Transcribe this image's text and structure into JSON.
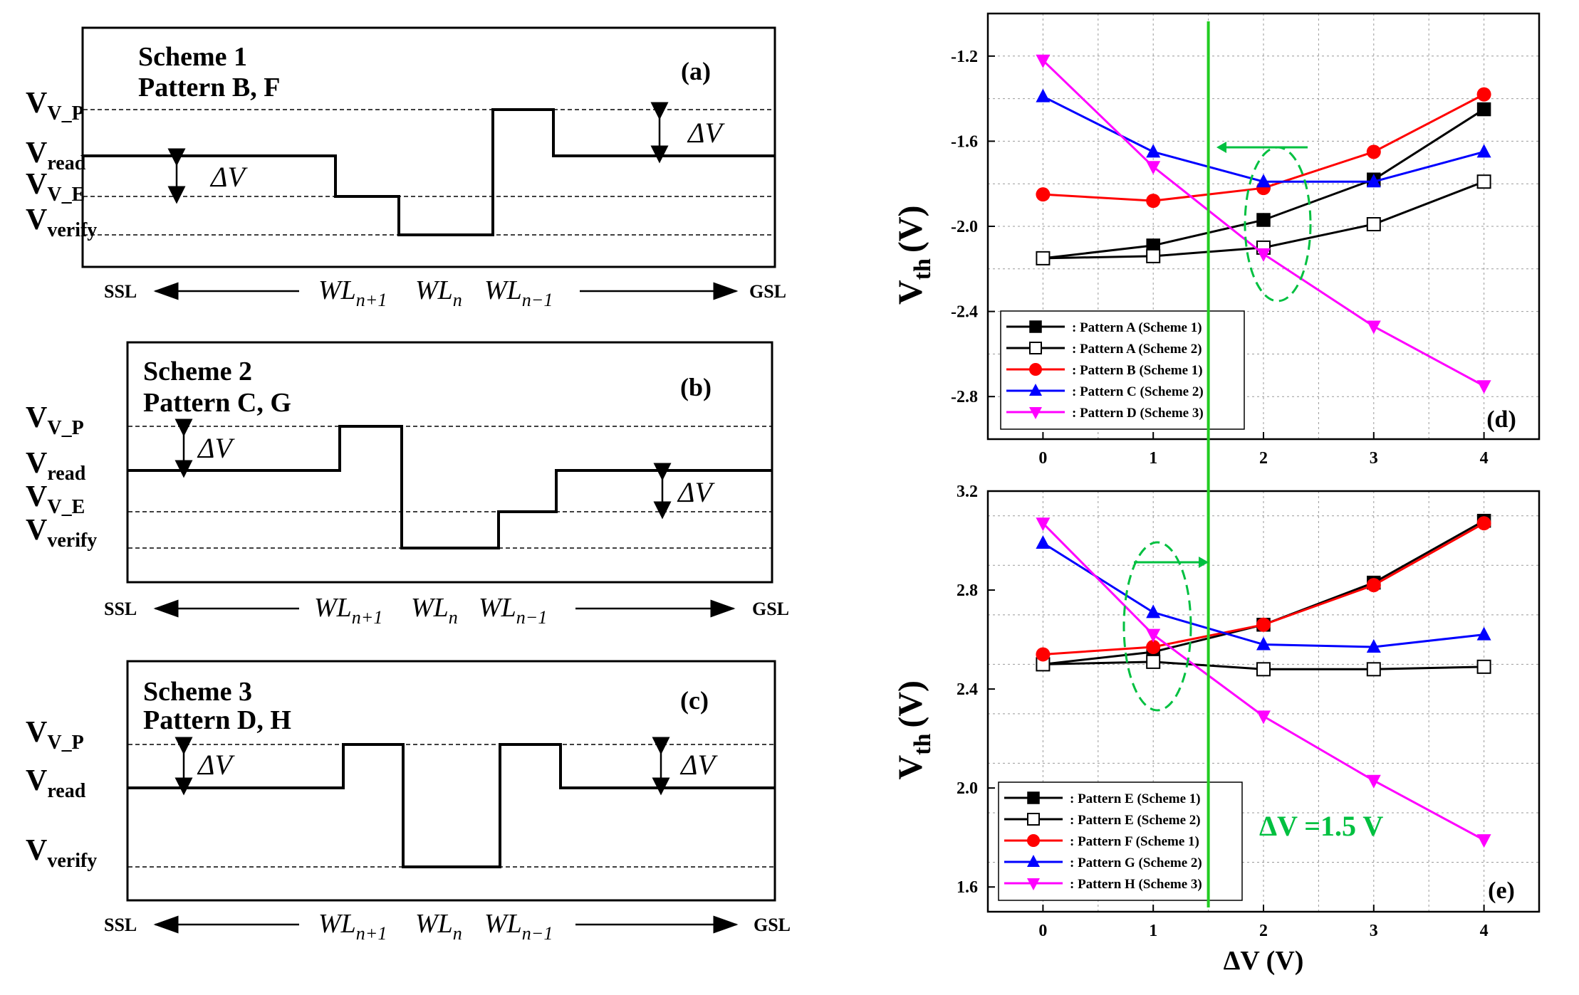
{
  "schemes": [
    {
      "panel": "(a)",
      "title": "Scheme 1",
      "pattern": "Pattern B, F",
      "levels": [
        "V_P",
        "read",
        "V_E",
        "verify"
      ],
      "delta_labels": [
        "ΔV",
        "ΔV"
      ],
      "wordlines": [
        "n+1",
        "n",
        "n−1"
      ]
    },
    {
      "panel": "(b)",
      "title": "Scheme 2",
      "pattern": "Pattern C, G",
      "levels": [
        "V_P",
        "read",
        "V_E",
        "verify"
      ],
      "delta_labels": [
        "ΔV",
        "ΔV"
      ],
      "wordlines": [
        "n+1",
        "n",
        "n−1"
      ]
    },
    {
      "panel": "(c)",
      "title": "Scheme 3",
      "pattern": "Pattern D, H",
      "levels": [
        "V_P",
        "read",
        "verify"
      ],
      "delta_labels": [
        "ΔV",
        "ΔV"
      ],
      "wordlines": [
        "n+1",
        "n",
        "n−1"
      ]
    }
  ],
  "axis_common": {
    "ssl": "SSL",
    "gsl": "GSL",
    "v_symbol": "V",
    "wl_symbol": "WL"
  },
  "chart_data": [
    {
      "type": "line",
      "panel": "(d)",
      "ylabel_main": "V",
      "ylabel_sub": "th",
      "ylabel_unit": "(V)",
      "x": [
        0,
        1,
        2,
        3,
        4
      ],
      "xlim": [
        -0.5,
        4.5
      ],
      "ylim": [
        -3.0,
        -1.0
      ],
      "xticks": [
        "0",
        "1",
        "2",
        "3",
        "4"
      ],
      "yticks": [
        "-1.2",
        "-1.6",
        "-2.0",
        "-2.4",
        "-2.8"
      ],
      "yticks_values": [
        -1.2,
        -1.6,
        -2.0,
        -2.4,
        -2.8
      ],
      "grid": true,
      "legend_position": "bottom-left",
      "series": [
        {
          "name": ": Pattern A (Scheme 1)",
          "color": "#000000",
          "marker": "square-filled",
          "values": [
            -2.15,
            -2.09,
            -1.97,
            -1.78,
            -1.45
          ]
        },
        {
          "name": ": Pattern A (Scheme 2)",
          "color": "#000000",
          "marker": "square-open",
          "values": [
            -2.15,
            -2.14,
            -2.1,
            -1.99,
            -1.79
          ]
        },
        {
          "name": ": Pattern B (Scheme 1)",
          "color": "#ff0000",
          "marker": "circle-filled",
          "values": [
            -1.85,
            -1.88,
            -1.82,
            -1.65,
            -1.38
          ]
        },
        {
          "name": ": Pattern C (Scheme 2)",
          "color": "#0000ff",
          "marker": "triangle-up",
          "values": [
            -1.39,
            -1.65,
            -1.79,
            -1.79,
            -1.65
          ]
        },
        {
          "name": ": Pattern D (Scheme 3)",
          "color": "#ff00ff",
          "marker": "triangle-down",
          "values": [
            -1.22,
            -1.72,
            -2.13,
            -2.47,
            -2.75
          ]
        }
      ]
    },
    {
      "type": "line",
      "panel": "(e)",
      "ylabel_main": "V",
      "ylabel_sub": "th",
      "ylabel_unit": "(V)",
      "xlabel": "ΔV (V)",
      "x": [
        0,
        1,
        2,
        3,
        4
      ],
      "xlim": [
        -0.5,
        4.5
      ],
      "ylim": [
        1.5,
        3.2
      ],
      "xticks": [
        "0",
        "1",
        "2",
        "3",
        "4"
      ],
      "yticks": [
        "3.2",
        "2.8",
        "2.4",
        "2.0",
        "1.6"
      ],
      "yticks_values": [
        3.2,
        2.8,
        2.4,
        2.0,
        1.6
      ],
      "grid": true,
      "legend_position": "bottom-left",
      "series": [
        {
          "name": ": Pattern E (Scheme 1)",
          "color": "#000000",
          "marker": "square-filled",
          "values": [
            2.5,
            2.55,
            2.66,
            2.83,
            3.08
          ]
        },
        {
          "name": ": Pattern E (Scheme 2)",
          "color": "#000000",
          "marker": "square-open",
          "values": [
            2.5,
            2.51,
            2.48,
            2.48,
            2.49
          ]
        },
        {
          "name": ": Pattern F (Scheme 1)",
          "color": "#ff0000",
          "marker": "circle-filled",
          "values": [
            2.54,
            2.57,
            2.66,
            2.82,
            3.07
          ]
        },
        {
          "name": ": Pattern G (Scheme 2)",
          "color": "#0000ff",
          "marker": "triangle-up",
          "values": [
            2.99,
            2.71,
            2.58,
            2.57,
            2.62
          ]
        },
        {
          "name": ": Pattern H (Scheme 3)",
          "color": "#ff00ff",
          "marker": "triangle-down",
          "values": [
            3.07,
            2.62,
            2.29,
            2.03,
            1.79
          ]
        }
      ],
      "annotation": "ΔV =1.5 V",
      "annotation_color": "#00c040"
    }
  ],
  "threshold_line": {
    "x": 1.5,
    "color": "#22cc22"
  }
}
